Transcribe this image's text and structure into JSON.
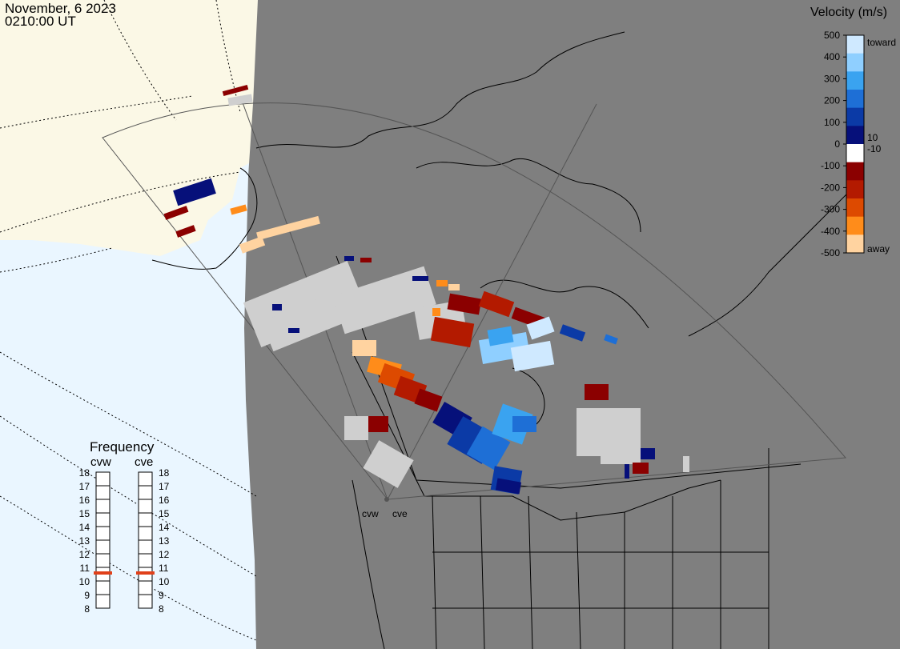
{
  "header": {
    "date": "November, 6 2023",
    "time": "0210:00 UT"
  },
  "velocity_scale": {
    "title": "Velocity (m/s)",
    "ticks": [
      "500",
      "400",
      "300",
      "200",
      "100",
      "0",
      "-100",
      "-200",
      "-300",
      "-400",
      "-500"
    ],
    "inner_labels": [
      "10",
      "-10"
    ],
    "toward_label": "toward",
    "away_label": "away",
    "colors": [
      "#cfe9ff",
      "#8fcfff",
      "#3aa3f0",
      "#1e6fd6",
      "#0b3aa6",
      "#06107a",
      "#ffffff",
      "#8b0000",
      "#b31a00",
      "#dd4a00",
      "#ff8c1a",
      "#ffd3a0"
    ]
  },
  "frequency": {
    "title": "Frequency",
    "radars": [
      {
        "name": "cvw",
        "value": 11
      },
      {
        "name": "cve",
        "value": 11
      }
    ],
    "ticks": [
      "18",
      "17",
      "16",
      "15",
      "14",
      "13",
      "12",
      "11",
      "10",
      "9",
      "8"
    ],
    "marker_color": "#e0401a"
  },
  "stations": {
    "cvw": "cvw",
    "cve": "cve"
  },
  "map_colors": {
    "land": "#7f7f7f",
    "ocean": "#eaf6ff",
    "alaska": "#fbf8e6",
    "groundscatter": "#cfcfcf"
  }
}
